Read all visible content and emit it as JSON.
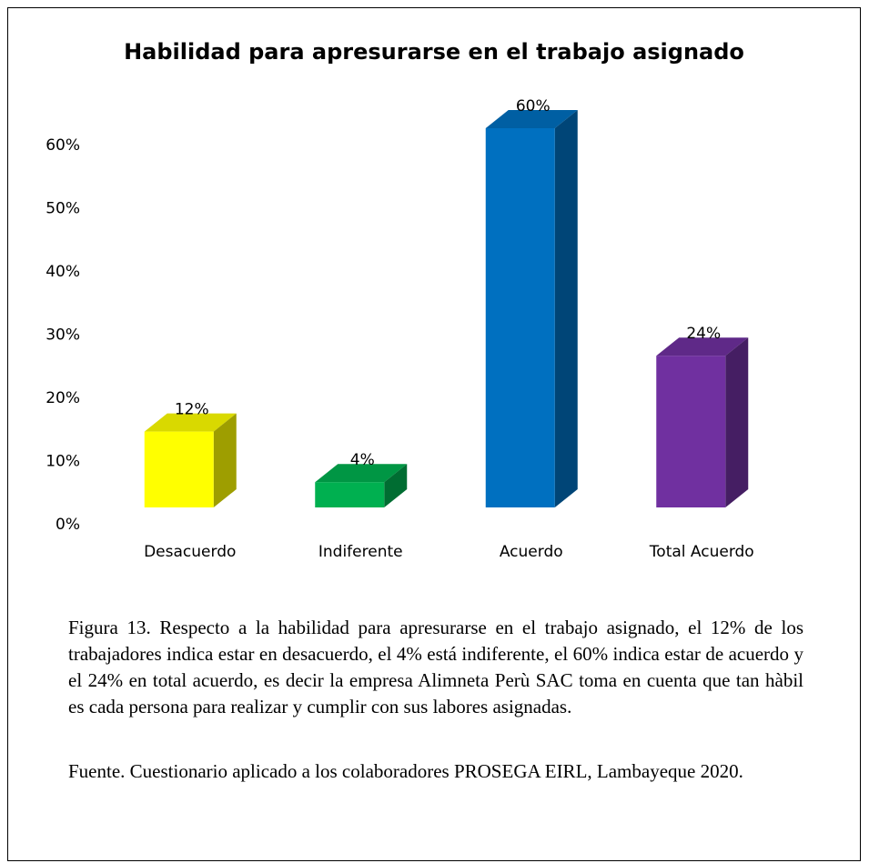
{
  "chart_data": {
    "type": "bar3d",
    "title": "Habilidad para apresurarse en el trabajo asignado",
    "categories": [
      "Desacuerdo",
      "Indiferente",
      "Acuerdo",
      "Total Acuerdo"
    ],
    "values": [
      12,
      4,
      60,
      24
    ],
    "value_labels": [
      "12%",
      "4%",
      "60%",
      "24%"
    ],
    "colors": [
      "#ffff00",
      "#00b050",
      "#0070c0",
      "#7030a0"
    ],
    "ylim": [
      0,
      60
    ],
    "yticks": [
      {
        "value": 0,
        "label": "0%"
      },
      {
        "value": 10,
        "label": "10%"
      },
      {
        "value": 20,
        "label": "20%"
      },
      {
        "value": 30,
        "label": "30%"
      },
      {
        "value": 40,
        "label": "40%"
      },
      {
        "value": 50,
        "label": "50%"
      },
      {
        "value": 60,
        "label": "60%"
      }
    ]
  },
  "caption": "Figura 13. Respecto a la habilidad para apresurarse en el trabajo asignado, el 12% de los trabajadores indica estar en desacuerdo, el 4% está indiferente, el 60% indica estar de acuerdo y el 24% en total acuerdo, es decir la empresa Alimneta Perù SAC toma en cuenta que tan hàbil es cada persona para realizar y cumplir con sus labores asignadas.",
  "source": "Fuente. Cuestionario aplicado a los colaboradores PROSEGA EIRL, Lambayeque 2020."
}
